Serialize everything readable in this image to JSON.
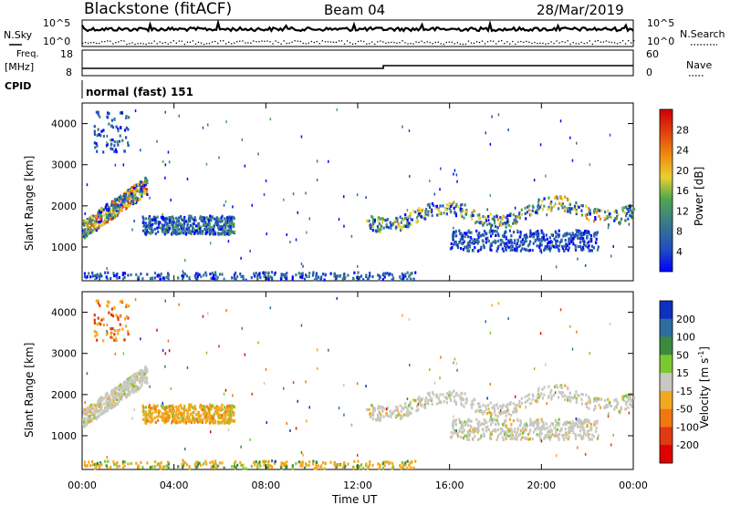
{
  "header": {
    "station": "Blackstone (fitACF)",
    "beam": "Beam 04",
    "date": "28/Mar/2019"
  },
  "top_panels": {
    "nsky_label": "N.Sky",
    "nsearch_label": "N.Search",
    "noise_ticks": [
      "10^5",
      "10^0"
    ],
    "freq_label": "Freq.",
    "freq_unit": "[MHz]",
    "freq_ticks": [
      "18",
      "8"
    ],
    "nave_label": "Nave",
    "nave_ticks": [
      "60",
      "0"
    ],
    "cpid_label": "CPID",
    "cpid_text": "normal (fast) 151"
  },
  "chart_data": [
    {
      "type": "heatmap",
      "name": "power",
      "ylabel": "Slant Range [km]",
      "yticks": [
        "1000",
        "2000",
        "3000",
        "4000"
      ],
      "ylim": [
        180,
        4500
      ],
      "colorbar_label": "Power [dB]",
      "colorbar_ticks": [
        "4",
        "8",
        "12",
        "16",
        "20",
        "24",
        "28"
      ],
      "colors": [
        "#0000ff",
        "#1f4fbf",
        "#3a7a8a",
        "#4fa84f",
        "#e8d030",
        "#f08a10",
        "#e04010",
        "#d00000"
      ],
      "echo_regions": [
        {
          "t_start": 0.0,
          "t_end": 2.8,
          "range_start": 1300,
          "range_end": 2600,
          "peak_db": 24
        },
        {
          "t_start": 0.5,
          "t_end": 2.0,
          "range_start": 3300,
          "range_end": 4300,
          "peak_db": 8
        },
        {
          "t_start": 2.6,
          "t_end": 6.6,
          "range_start": 1300,
          "range_end": 1750,
          "peak_db": 12
        },
        {
          "t_start": 0.0,
          "t_end": 14.5,
          "range_start": 200,
          "range_end": 380,
          "peak_db": 10
        },
        {
          "t_start": 12.3,
          "t_end": 24.0,
          "range_start": 1400,
          "range_end": 2300,
          "peak_db": 20
        },
        {
          "t_start": 16.0,
          "t_end": 22.5,
          "range_start": 900,
          "range_end": 1400,
          "peak_db": 8
        }
      ]
    },
    {
      "type": "heatmap",
      "name": "velocity",
      "ylabel": "Slant Range [km]",
      "yticks": [
        "1000",
        "2000",
        "3000",
        "4000"
      ],
      "ylim": [
        180,
        4500
      ],
      "colorbar_label": "Velocity [m s^-1]",
      "colorbar_ticks": [
        "200",
        "100",
        "50",
        "15",
        "-15",
        "-50",
        "-100",
        "-200"
      ],
      "colors": [
        "#1030c0",
        "#2d6e9e",
        "#3c8a3c",
        "#7cc830",
        "#c8c8c0",
        "#f2a81e",
        "#f07810",
        "#e03a10",
        "#e00000"
      ],
      "xlabel": "Time UT",
      "xticks": [
        "00:00",
        "04:00",
        "08:00",
        "12:00",
        "16:00",
        "20:00",
        "00:00"
      ],
      "xlim_hours": [
        0,
        24
      ]
    }
  ]
}
